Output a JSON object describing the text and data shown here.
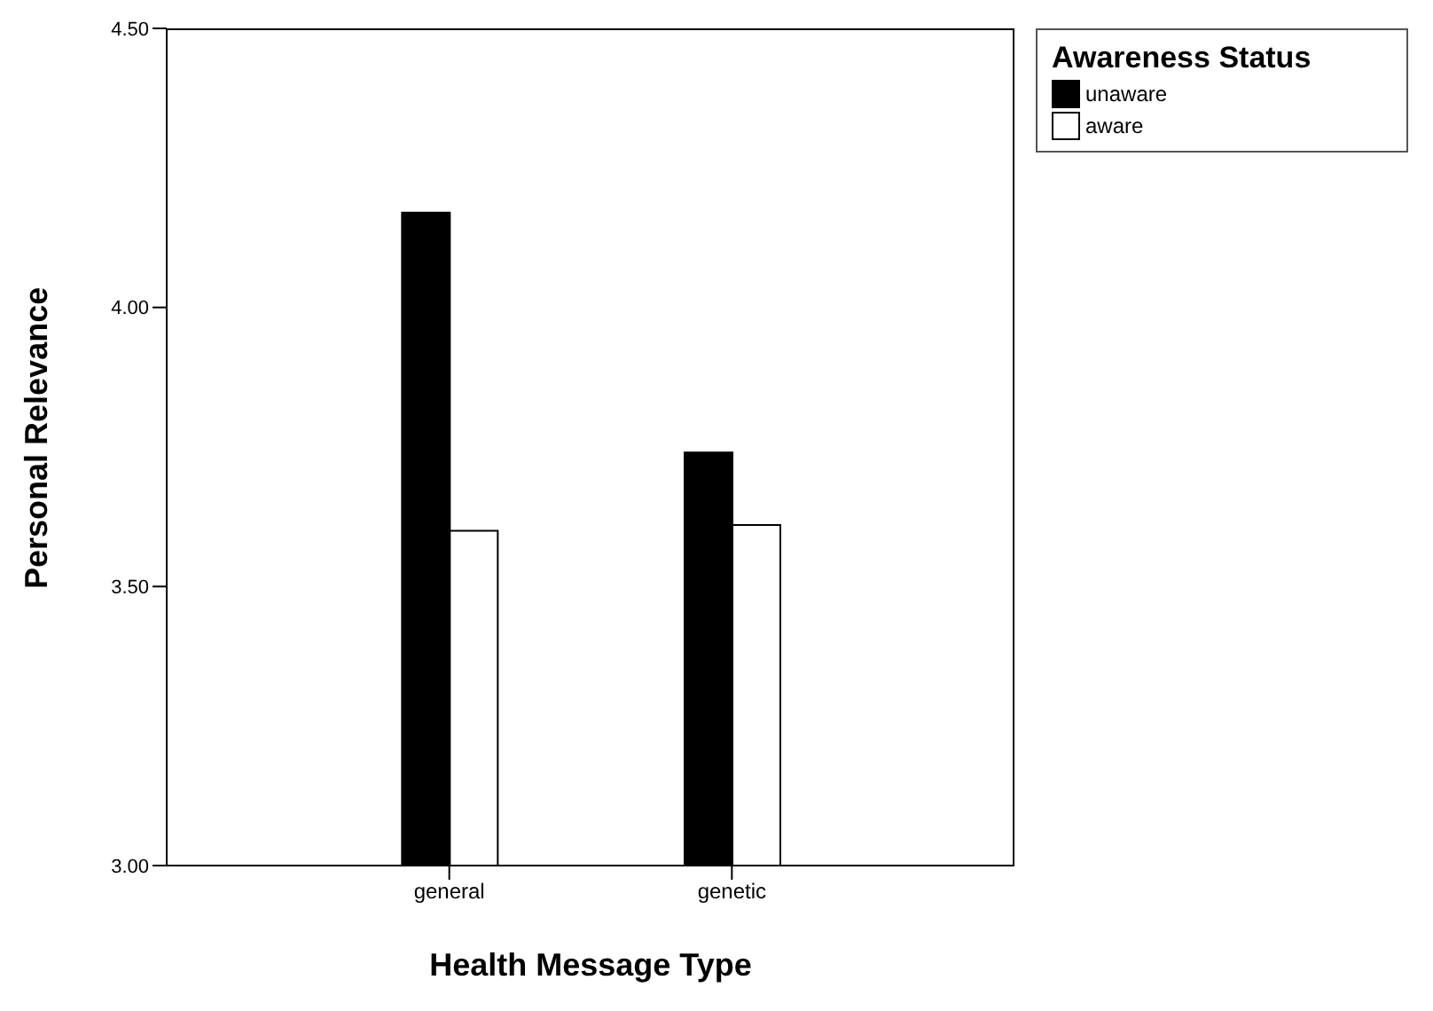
{
  "chart_data": {
    "type": "bar",
    "xlabel": "Health Message Type",
    "ylabel": "Personal Relevance",
    "legend_title": "Awareness Status",
    "categories": [
      "general",
      "genetic"
    ],
    "series": [
      {
        "name": "unaware",
        "color": "#000000",
        "values": [
          4.17,
          3.74
        ]
      },
      {
        "name": "aware",
        "color": "#ffffff",
        "values": [
          3.6,
          3.61
        ]
      }
    ],
    "ylim": [
      3.0,
      4.5
    ],
    "yticks": [
      {
        "value": 3.0,
        "label": "3.00"
      },
      {
        "value": 3.5,
        "label": "3.50"
      },
      {
        "value": 4.0,
        "label": "4.00"
      },
      {
        "value": 4.5,
        "label": "4.50"
      }
    ],
    "grid": false,
    "legend": "top right"
  }
}
